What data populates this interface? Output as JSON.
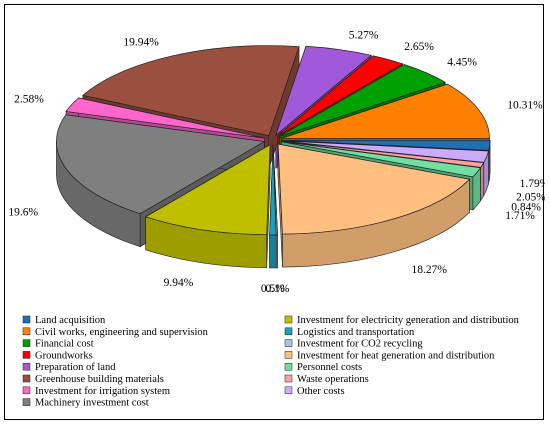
{
  "chart_data": {
    "type": "pie",
    "three_d": true,
    "exploded": true,
    "legend_position": "bottom",
    "slices": [
      {
        "label": "Land acquisition",
        "value": 1.79,
        "display": "1.79%",
        "color": "#1f6fb2"
      },
      {
        "label": "Investment for electricity generation and distribution",
        "value": 9.94,
        "display": "9.94%",
        "color": "#bfbf00"
      },
      {
        "label": "Civil works, engineering and supervision",
        "value": 10.31,
        "display": "10.31%",
        "color": "#ff8000"
      },
      {
        "label": "Logistics and transportation",
        "value": 0.5,
        "display": "0.5%",
        "color": "#1aa0b8"
      },
      {
        "label": "Financial cost",
        "value": 4.45,
        "display": "4.45%",
        "color": "#00a000"
      },
      {
        "label": "Investment for CO2 recycling",
        "value": 0.1,
        "display": "0.1%",
        "color": "#a9c4e8"
      },
      {
        "label": "Groundworks",
        "value": 2.65,
        "display": "2.65%",
        "color": "#ff0000"
      },
      {
        "label": "Investment for heat generation and distribution",
        "value": 18.27,
        "display": "18.27%",
        "color": "#ffbf80"
      },
      {
        "label": "Preparation of land",
        "value": 5.27,
        "display": "5.27%",
        "color": "#a259d9"
      },
      {
        "label": "Personnel costs",
        "value": 1.71,
        "display": "1.71%",
        "color": "#70e0a0"
      },
      {
        "label": "Greenhouse building materials",
        "value": 19.94,
        "display": "19.94%",
        "color": "#9b4f3f"
      },
      {
        "label": "Waste operations",
        "value": 0.84,
        "display": "0.84%",
        "color": "#ffa0a0"
      },
      {
        "label": "Investment for irrigation system",
        "value": 2.58,
        "display": "2.58%",
        "color": "#ff66cc"
      },
      {
        "label": "Other costs",
        "value": 2.05,
        "display": "2.05%",
        "color": "#ccaaff"
      },
      {
        "label": "Machinery investment cost",
        "value": 19.6,
        "display": "19.6%",
        "color": "#7f7f7f"
      }
    ],
    "draw_order_clockwise_from_east": [
      "Land acquisition",
      "Other costs",
      "Waste operations",
      "Personnel costs",
      "Investment for heat generation and distribution",
      "Investment for CO2 recycling",
      "Logistics and transportation",
      "Investment for electricity generation and distribution",
      "Machinery investment cost",
      "Investment for irrigation system",
      "Greenhouse building materials",
      "Preparation of land",
      "Groundworks",
      "Financial cost",
      "Civil works, engineering and supervision"
    ]
  }
}
